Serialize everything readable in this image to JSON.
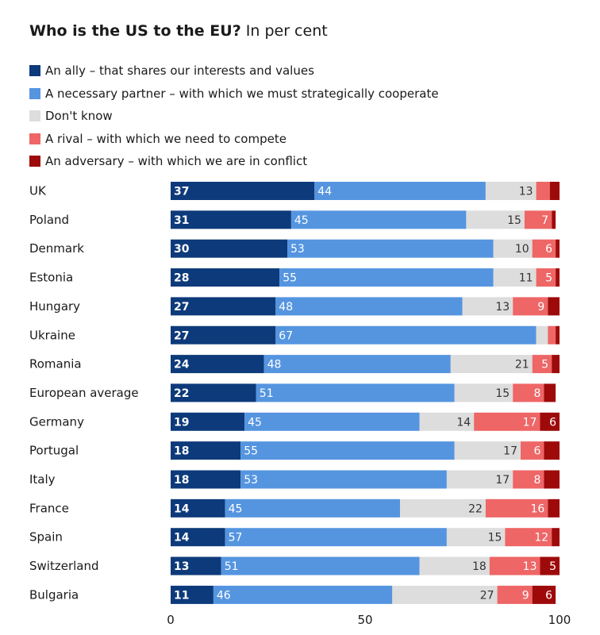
{
  "title": "Who is the US to the EU?",
  "subtitle": "In per cent",
  "legend": [
    {
      "label": "An ally – that shares our interests and values",
      "color": "#0d3a7a"
    },
    {
      "label": "A necessary partner – with which we must strategically cooperate",
      "color": "#5595e0"
    },
    {
      "label": "Don't know",
      "color": "#dddddd"
    },
    {
      "label": "A rival – with which we need to compete",
      "color": "#ee6666"
    },
    {
      "label": "An adversary – with which we are in conflict",
      "color": "#9e0a0a"
    }
  ],
  "chart_data": {
    "type": "bar",
    "orientation": "horizontal",
    "stacked": true,
    "xlim": [
      0,
      100
    ],
    "xticks": [
      0,
      50,
      100
    ],
    "categories": [
      "UK",
      "Poland",
      "Denmark",
      "Estonia",
      "Hungary",
      "Ukraine",
      "Romania",
      "European average",
      "Germany",
      "Portugal",
      "Italy",
      "France",
      "Spain",
      "Switzerland",
      "Bulgaria"
    ],
    "series": [
      {
        "name": "An ally – that shares our interests and values",
        "color": "#0d3a7a",
        "label_color": "#ffffff",
        "values": [
          37,
          31,
          30,
          28,
          27,
          27,
          24,
          22,
          19,
          18,
          18,
          14,
          14,
          13,
          11
        ]
      },
      {
        "name": "A necessary partner – with which we must strategically cooperate",
        "color": "#5595e0",
        "label_color": "#ffffff",
        "values": [
          44,
          45,
          53,
          55,
          48,
          67,
          48,
          51,
          45,
          55,
          53,
          45,
          57,
          51,
          46
        ]
      },
      {
        "name": "Don't know",
        "color": "#dddddd",
        "label_color": "#333333",
        "values": [
          13,
          15,
          10,
          11,
          13,
          3,
          21,
          15,
          14,
          17,
          17,
          22,
          15,
          18,
          27
        ],
        "labels": [
          "13",
          "15",
          "10",
          "11",
          "13",
          "",
          "21",
          "15",
          "14",
          "17",
          "17",
          "22",
          "15",
          "18",
          "27"
        ]
      },
      {
        "name": "A rival – with which we need to compete",
        "color": "#ee6666",
        "label_color": "#ffffff",
        "values": [
          3.5,
          7,
          6,
          5,
          9,
          2,
          5,
          8,
          17,
          6,
          8,
          16,
          12,
          13,
          9
        ],
        "labels": [
          "",
          "7",
          "6",
          "5",
          "9",
          "",
          "5",
          "8",
          "17",
          "6",
          "8",
          "16",
          "12",
          "13",
          "9"
        ]
      },
      {
        "name": "An adversary – with which we are in conflict",
        "color": "#9e0a0a",
        "label_color": "#ffffff",
        "values": [
          2.5,
          1,
          1,
          1,
          3,
          1,
          2,
          3,
          6,
          4,
          4,
          3,
          2,
          5,
          6
        ],
        "labels": [
          "",
          "",
          "",
          "",
          "",
          "",
          "",
          "",
          "6",
          "",
          "",
          "",
          "",
          "5",
          "6"
        ]
      }
    ]
  }
}
